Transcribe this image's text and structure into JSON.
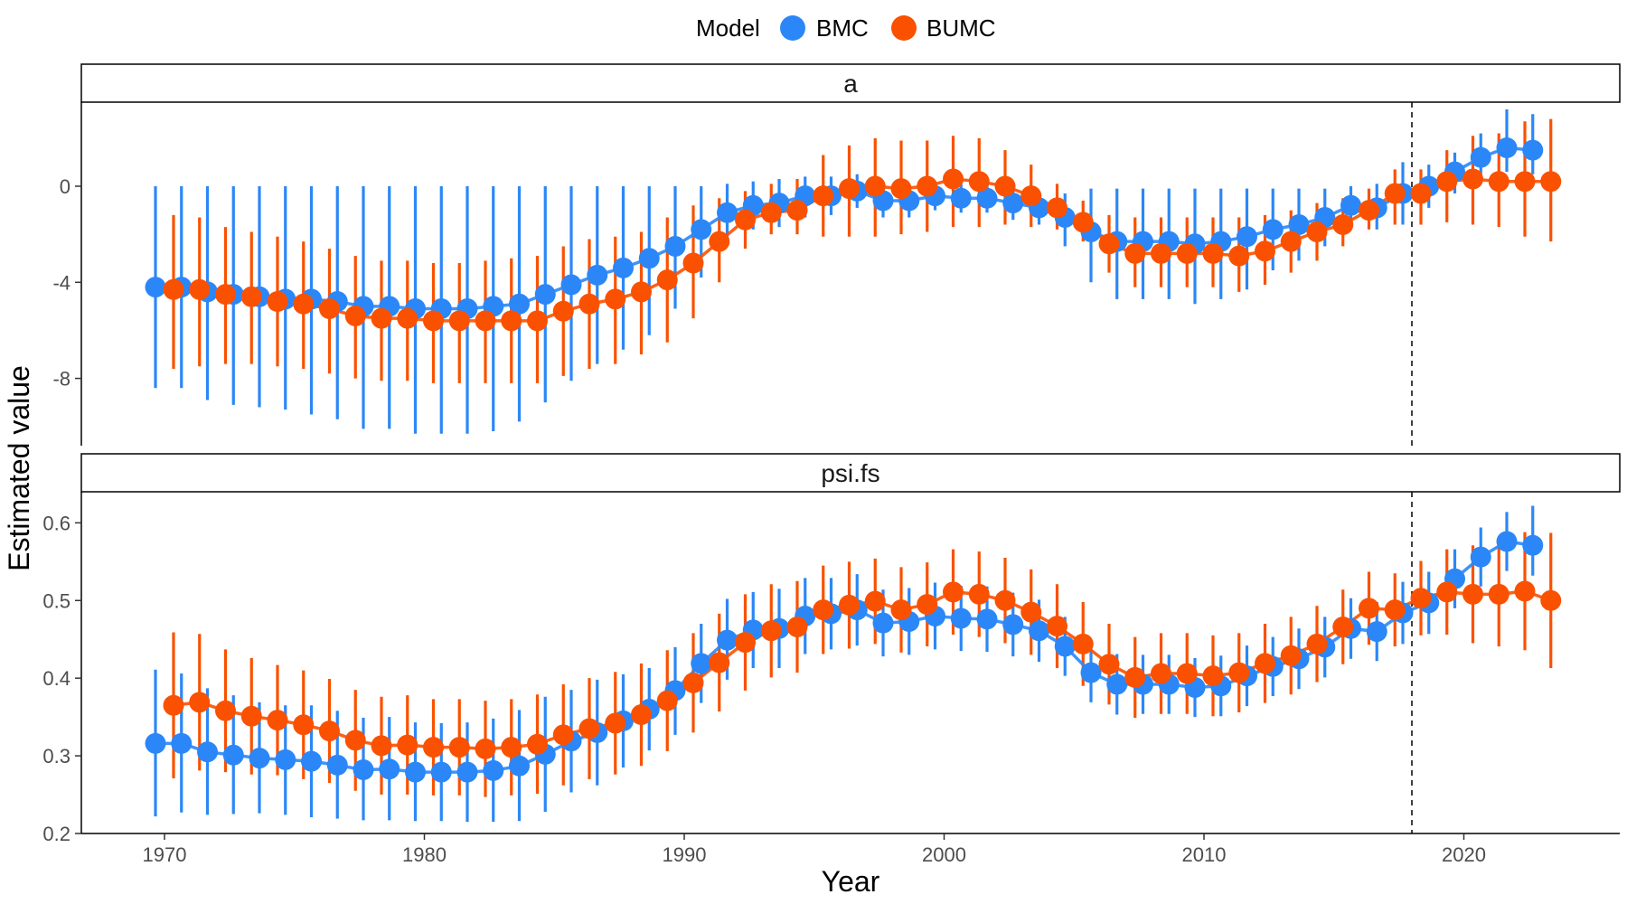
{
  "chart_data": {
    "type": "scatter",
    "xlabel": "Year",
    "ylabel": "Estimated value",
    "x_ticks": [
      1970,
      1980,
      1990,
      2000,
      2010,
      2020
    ],
    "xlim": [
      1966.8,
      2026.0
    ],
    "vline_x": 2018,
    "legend": {
      "title": "Model",
      "position": "top"
    },
    "series_names": [
      "BMC",
      "BUMC"
    ],
    "colors": {
      "BMC": "#2b87f7",
      "BUMC": "#fa5100"
    },
    "x": [
      1970,
      1971,
      1972,
      1973,
      1974,
      1975,
      1976,
      1977,
      1978,
      1979,
      1980,
      1981,
      1982,
      1983,
      1984,
      1985,
      1986,
      1987,
      1988,
      1989,
      1990,
      1991,
      1992,
      1993,
      1994,
      1995,
      1996,
      1997,
      1998,
      1999,
      2000,
      2001,
      2002,
      2003,
      2004,
      2005,
      2006,
      2007,
      2008,
      2009,
      2010,
      2011,
      2012,
      2013,
      2014,
      2015,
      2016,
      2017,
      2018,
      2019,
      2020,
      2021,
      2022,
      2023
    ],
    "panels": [
      {
        "strip": "a",
        "ylim": [
          -10.8,
          3.5
        ],
        "y_ticks": [
          0,
          -4,
          -8
        ],
        "y_tick_labels": [
          "0",
          "-4",
          "-8"
        ],
        "series": [
          {
            "name": "BMC",
            "values": [
              -4.2,
              -4.2,
              -4.4,
              -4.5,
              -4.6,
              -4.7,
              -4.7,
              -4.8,
              -5.0,
              -5.0,
              -5.1,
              -5.1,
              -5.1,
              -5.0,
              -4.9,
              -4.5,
              -4.1,
              -3.7,
              -3.4,
              -3.0,
              -2.5,
              -1.8,
              -1.1,
              -0.8,
              -0.7,
              -0.4,
              -0.4,
              -0.2,
              -0.6,
              -0.6,
              -0.4,
              -0.5,
              -0.5,
              -0.7,
              -0.9,
              -1.3,
              -1.9,
              -2.3,
              -2.3,
              -2.3,
              -2.4,
              -2.3,
              -2.1,
              -1.8,
              -1.6,
              -1.3,
              -0.8,
              -0.9,
              -0.3,
              0.0,
              0.6,
              1.2,
              1.6,
              1.5
            ],
            "lower": [
              -8.4,
              -8.4,
              -8.9,
              -9.1,
              -9.2,
              -9.3,
              -9.5,
              -9.7,
              -10.1,
              -10.1,
              -10.3,
              -10.3,
              -10.3,
              -10.2,
              -9.8,
              -9.0,
              -8.1,
              -7.4,
              -6.8,
              -6.2,
              -5.1,
              -3.8,
              -2.2,
              -1.8,
              -1.7,
              -1.3,
              -1.2,
              -0.9,
              -1.3,
              -1.3,
              -1.0,
              -1.1,
              -1.1,
              -1.4,
              -1.6,
              -2.5,
              -4.0,
              -4.7,
              -4.7,
              -4.7,
              -4.9,
              -4.7,
              -4.3,
              -3.5,
              -3.1,
              -2.5,
              -1.6,
              -1.8,
              -1.6,
              -0.9,
              -0.3,
              0.3,
              0.6,
              0.5
            ],
            "upper": [
              0.0,
              0.0,
              0.0,
              0.0,
              0.0,
              0.0,
              0.0,
              0.0,
              0.0,
              0.0,
              0.0,
              0.0,
              0.0,
              0.0,
              0.0,
              0.0,
              0.0,
              0.0,
              0.0,
              0.0,
              0.0,
              0.0,
              0.1,
              0.2,
              0.3,
              0.4,
              0.4,
              0.5,
              0.2,
              0.1,
              0.2,
              0.1,
              0.1,
              0.0,
              -0.2,
              -0.3,
              -0.1,
              -0.1,
              -0.1,
              -0.1,
              -0.1,
              -0.1,
              -0.1,
              -0.1,
              -0.1,
              -0.1,
              0.0,
              0.1,
              1.0,
              0.9,
              1.4,
              2.2,
              3.2,
              3.0
            ]
          },
          {
            "name": "BUMC",
            "values": [
              -4.3,
              -4.3,
              -4.5,
              -4.6,
              -4.8,
              -4.9,
              -5.1,
              -5.4,
              -5.5,
              -5.5,
              -5.6,
              -5.6,
              -5.6,
              -5.6,
              -5.6,
              -5.2,
              -4.9,
              -4.7,
              -4.4,
              -3.9,
              -3.2,
              -2.3,
              -1.4,
              -1.1,
              -1.0,
              -0.4,
              -0.1,
              0.0,
              -0.1,
              0.0,
              0.3,
              0.2,
              0.0,
              -0.4,
              -0.9,
              -1.5,
              -2.4,
              -2.8,
              -2.8,
              -2.8,
              -2.8,
              -2.9,
              -2.7,
              -2.3,
              -1.9,
              -1.6,
              -1.0,
              -0.3,
              -0.3,
              0.2,
              0.3,
              0.2,
              0.2,
              0.2
            ],
            "lower": [
              -7.6,
              -7.5,
              -7.4,
              -7.4,
              -7.5,
              -7.6,
              -7.8,
              -8.0,
              -8.1,
              -8.1,
              -8.2,
              -8.2,
              -8.2,
              -8.2,
              -8.2,
              -7.9,
              -7.6,
              -7.4,
              -7.0,
              -6.5,
              -5.5,
              -4.0,
              -2.6,
              -2.0,
              -2.0,
              -2.1,
              -2.1,
              -2.1,
              -2.0,
              -1.9,
              -1.7,
              -1.7,
              -1.6,
              -1.7,
              -1.8,
              -2.3,
              -3.6,
              -4.2,
              -4.2,
              -4.2,
              -4.2,
              -4.4,
              -4.1,
              -3.6,
              -3.1,
              -2.5,
              -1.8,
              -1.6,
              -1.6,
              -1.5,
              -1.6,
              -1.7,
              -2.1,
              -2.3
            ],
            "upper": [
              -1.2,
              -1.3,
              -1.7,
              -1.9,
              -2.1,
              -2.3,
              -2.6,
              -2.9,
              -3.1,
              -3.1,
              -3.2,
              -3.2,
              -3.1,
              -3.0,
              -2.9,
              -2.5,
              -2.2,
              -2.1,
              -1.9,
              -1.3,
              -0.8,
              -0.5,
              -0.2,
              0.1,
              0.3,
              1.3,
              1.7,
              2.0,
              1.9,
              1.9,
              2.1,
              2.0,
              1.5,
              0.9,
              0.1,
              -0.6,
              -1.2,
              -1.3,
              -1.3,
              -1.3,
              -1.3,
              -1.3,
              -1.2,
              -1.0,
              -0.7,
              -0.5,
              -0.1,
              0.7,
              0.7,
              1.5,
              2.1,
              2.2,
              2.7,
              2.8
            ]
          }
        ]
      },
      {
        "strip": "psi.fs",
        "ylim": [
          0.2,
          0.64
        ],
        "y_ticks": [
          0.2,
          0.3,
          0.4,
          0.5,
          0.6
        ],
        "y_tick_labels": [
          "0.2",
          "0.3",
          "0.4",
          "0.5",
          "0.6"
        ],
        "series": [
          {
            "name": "BMC",
            "values": [
              0.316,
              0.316,
              0.305,
              0.301,
              0.297,
              0.295,
              0.293,
              0.288,
              0.282,
              0.283,
              0.279,
              0.279,
              0.279,
              0.281,
              0.287,
              0.302,
              0.319,
              0.33,
              0.345,
              0.36,
              0.384,
              0.419,
              0.449,
              0.462,
              0.464,
              0.48,
              0.483,
              0.488,
              0.471,
              0.473,
              0.48,
              0.477,
              0.476,
              0.469,
              0.461,
              0.441,
              0.407,
              0.392,
              0.392,
              0.392,
              0.388,
              0.39,
              0.403,
              0.415,
              0.425,
              0.44,
              0.464,
              0.46,
              0.484,
              0.497,
              0.528,
              0.556,
              0.576,
              0.571
            ],
            "lower": [
              0.222,
              0.227,
              0.224,
              0.225,
              0.226,
              0.224,
              0.221,
              0.219,
              0.217,
              0.217,
              0.216,
              0.216,
              0.215,
              0.215,
              0.216,
              0.228,
              0.253,
              0.262,
              0.285,
              0.307,
              0.327,
              0.368,
              0.398,
              0.413,
              0.413,
              0.431,
              0.437,
              0.442,
              0.428,
              0.43,
              0.437,
              0.435,
              0.434,
              0.428,
              0.421,
              0.403,
              0.369,
              0.353,
              0.354,
              0.354,
              0.35,
              0.351,
              0.364,
              0.377,
              0.386,
              0.401,
              0.425,
              0.422,
              0.444,
              0.457,
              0.49,
              0.518,
              0.538,
              0.532
            ],
            "upper": [
              0.411,
              0.406,
              0.387,
              0.378,
              0.369,
              0.365,
              0.365,
              0.358,
              0.349,
              0.35,
              0.343,
              0.342,
              0.343,
              0.348,
              0.359,
              0.376,
              0.385,
              0.398,
              0.405,
              0.413,
              0.44,
              0.47,
              0.502,
              0.511,
              0.515,
              0.529,
              0.529,
              0.534,
              0.514,
              0.516,
              0.523,
              0.519,
              0.518,
              0.51,
              0.501,
              0.479,
              0.445,
              0.431,
              0.43,
              0.43,
              0.426,
              0.429,
              0.442,
              0.453,
              0.464,
              0.479,
              0.503,
              0.498,
              0.524,
              0.537,
              0.566,
              0.594,
              0.614,
              0.622
            ]
          },
          {
            "name": "BUMC",
            "values": [
              0.365,
              0.369,
              0.358,
              0.351,
              0.346,
              0.34,
              0.332,
              0.32,
              0.313,
              0.314,
              0.311,
              0.311,
              0.309,
              0.311,
              0.315,
              0.327,
              0.335,
              0.342,
              0.353,
              0.371,
              0.394,
              0.42,
              0.446,
              0.461,
              0.466,
              0.488,
              0.494,
              0.499,
              0.488,
              0.495,
              0.511,
              0.508,
              0.5,
              0.485,
              0.467,
              0.444,
              0.418,
              0.401,
              0.406,
              0.406,
              0.403,
              0.407,
              0.419,
              0.429,
              0.444,
              0.466,
              0.49,
              0.488,
              0.503,
              0.511,
              0.508,
              0.508,
              0.512,
              0.5
            ],
            "lower": [
              0.271,
              0.281,
              0.279,
              0.276,
              0.275,
              0.27,
              0.265,
              0.255,
              0.25,
              0.25,
              0.249,
              0.249,
              0.247,
              0.249,
              0.251,
              0.262,
              0.27,
              0.276,
              0.287,
              0.306,
              0.33,
              0.357,
              0.384,
              0.401,
              0.407,
              0.431,
              0.438,
              0.444,
              0.433,
              0.441,
              0.456,
              0.453,
              0.445,
              0.43,
              0.413,
              0.39,
              0.366,
              0.349,
              0.354,
              0.354,
              0.351,
              0.356,
              0.368,
              0.379,
              0.395,
              0.418,
              0.443,
              0.441,
              0.455,
              0.456,
              0.445,
              0.441,
              0.436,
              0.413
            ],
            "upper": [
              0.459,
              0.457,
              0.437,
              0.426,
              0.417,
              0.41,
              0.399,
              0.385,
              0.376,
              0.378,
              0.373,
              0.373,
              0.371,
              0.373,
              0.379,
              0.392,
              0.4,
              0.408,
              0.419,
              0.436,
              0.458,
              0.483,
              0.508,
              0.521,
              0.525,
              0.545,
              0.55,
              0.554,
              0.543,
              0.549,
              0.566,
              0.563,
              0.555,
              0.54,
              0.521,
              0.498,
              0.47,
              0.453,
              0.458,
              0.458,
              0.455,
              0.458,
              0.47,
              0.479,
              0.493,
              0.514,
              0.537,
              0.535,
              0.551,
              0.566,
              0.571,
              0.575,
              0.588,
              0.587
            ]
          }
        ]
      }
    ]
  }
}
